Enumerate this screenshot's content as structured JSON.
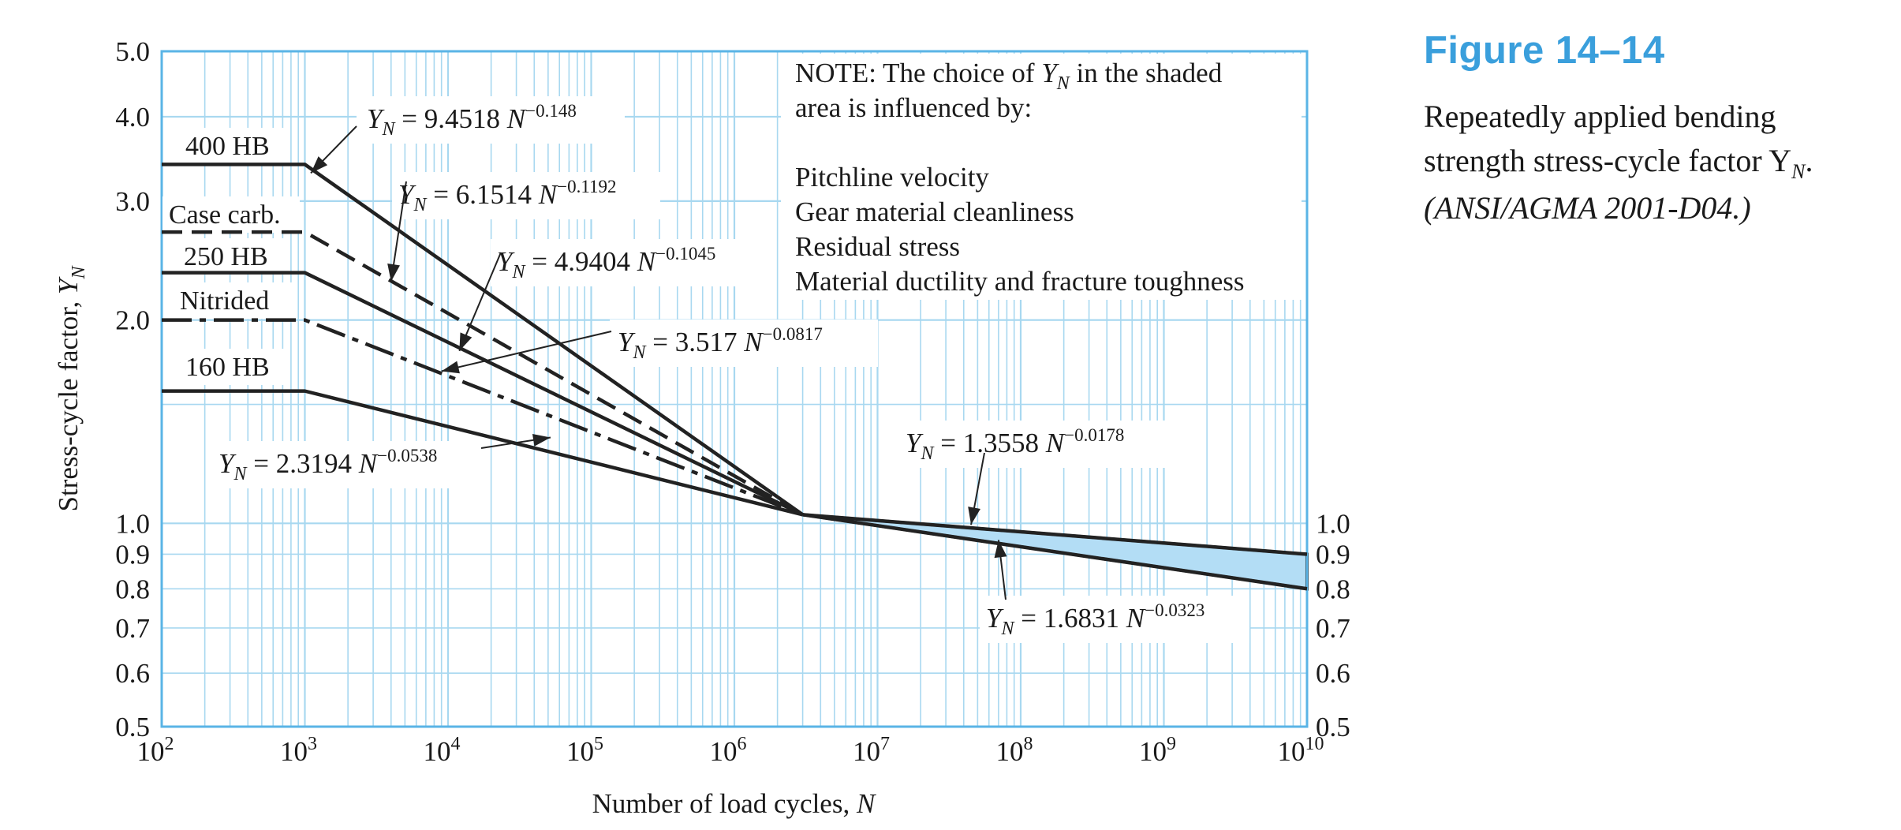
{
  "figure": {
    "title": "Figure 14–14",
    "caption": "Repeatedly applied bending strength stress-cycle factor Y",
    "caption_sub": "N",
    "caption_end": ".",
    "source": "(ANSI/AGMA 2001-D04.)"
  },
  "colors": {
    "grid": "#a8d8f0",
    "frame": "#5ab4e6",
    "curve": "#222222",
    "shade": "#b3ddf5",
    "title": "#3a9fdc"
  },
  "note": {
    "lines": [
      "NOTE:   The choice of Y_N in the shaded",
      "area is influenced by:",
      "",
      "Pitchline velocity",
      "Gear material cleanliness",
      "Residual stress",
      "Material ductility and fracture toughness"
    ]
  },
  "chart_data": {
    "type": "line",
    "xlabel": "Number of load cycles, N",
    "ylabel": "Stress-cycle factor, Y_N",
    "x_scale": "log",
    "y_scale": "log",
    "xlim": [
      100,
      10000000000
    ],
    "ylim": [
      0.5,
      5.0
    ],
    "x_ticks": [
      {
        "value": 100,
        "base": "10",
        "exp": "2"
      },
      {
        "value": 1000,
        "base": "10",
        "exp": "3"
      },
      {
        "value": 10000,
        "base": "10",
        "exp": "4"
      },
      {
        "value": 100000,
        "base": "10",
        "exp": "5"
      },
      {
        "value": 1000000,
        "base": "10",
        "exp": "6"
      },
      {
        "value": 10000000,
        "base": "10",
        "exp": "7"
      },
      {
        "value": 100000000,
        "base": "10",
        "exp": "8"
      },
      {
        "value": 1000000000,
        "base": "10",
        "exp": "9"
      },
      {
        "value": 10000000000,
        "base": "10",
        "exp": "10"
      }
    ],
    "y_ticks_left": [
      "5.0",
      "4.0",
      "3.0",
      "2.0",
      "1.0",
      "0.9",
      "0.8",
      "0.7",
      "0.6",
      "0.5"
    ],
    "y_ticks_right": [
      "1.0",
      "0.9",
      "0.8",
      "0.7",
      "0.6",
      "0.5"
    ],
    "grid": true,
    "series": [
      {
        "name": "400 HB",
        "style": "solid",
        "points": [
          [
            100,
            3.4
          ],
          [
            1000,
            3.4
          ],
          [
            3000000,
            1.03
          ]
        ]
      },
      {
        "name": "Case carb.",
        "style": "dashed",
        "points": [
          [
            100,
            2.7
          ],
          [
            1000,
            2.7
          ],
          [
            3000000,
            1.03
          ]
        ]
      },
      {
        "name": "250 HB",
        "style": "solid",
        "points": [
          [
            100,
            2.35
          ],
          [
            1000,
            2.35
          ],
          [
            3000000,
            1.03
          ]
        ]
      },
      {
        "name": "Nitrided",
        "style": "dashdot",
        "points": [
          [
            100,
            2.0
          ],
          [
            1000,
            2.0
          ],
          [
            3000000,
            1.03
          ]
        ]
      },
      {
        "name": "160 HB",
        "style": "solid",
        "points": [
          [
            100,
            1.57
          ],
          [
            1000,
            1.57
          ],
          [
            3000000,
            1.03
          ]
        ]
      },
      {
        "name": "",
        "style": "solid",
        "points": [
          [
            3000000,
            1.03
          ],
          [
            10000000000,
            0.9
          ]
        ]
      },
      {
        "name": "",
        "style": "solid",
        "points": [
          [
            3000000,
            1.03
          ],
          [
            10000000000,
            0.8
          ]
        ]
      }
    ],
    "shaded_region": {
      "upper": [
        [
          3000000,
          1.03
        ],
        [
          10000000000,
          0.9
        ]
      ],
      "lower": [
        [
          3000000,
          1.03
        ],
        [
          10000000000,
          0.8
        ]
      ]
    },
    "equations": [
      {
        "coef": "9.4518",
        "exp": "−0.148",
        "point_to": [
          1100,
          3.3
        ]
      },
      {
        "coef": "6.1514",
        "exp": "−0.1192",
        "point_to": [
          4000,
          2.28
        ]
      },
      {
        "coef": "4.9404",
        "exp": "−0.1045",
        "point_to": [
          12000,
          1.8
        ]
      },
      {
        "coef": "3.517",
        "exp": "−0.0817",
        "point_to": [
          9000,
          1.68
        ]
      },
      {
        "coef": "2.3194",
        "exp": "−0.0538",
        "point_to": [
          52000,
          1.34
        ]
      },
      {
        "coef": "1.3558",
        "exp": "−0.0178",
        "point_to": [
          45000000,
          0.995
        ]
      },
      {
        "coef": "1.6831",
        "exp": "−0.0323",
        "point_to": [
          70000000,
          0.945
        ]
      }
    ]
  }
}
